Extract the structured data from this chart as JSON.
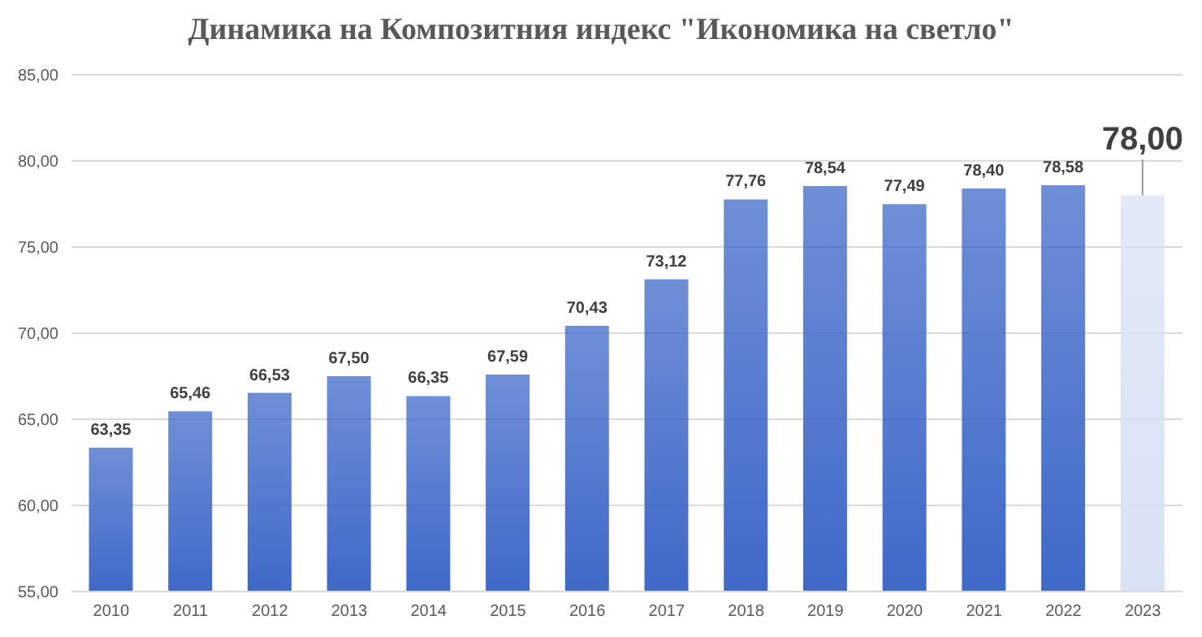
{
  "chart_data": {
    "type": "bar",
    "title": "Динамика на Композитния индекс \"Икономика на светло\"",
    "categories": [
      "2010",
      "2011",
      "2012",
      "2013",
      "2014",
      "2015",
      "2016",
      "2017",
      "2018",
      "2019",
      "2020",
      "2021",
      "2022",
      "2023"
    ],
    "values": [
      63.35,
      65.46,
      66.53,
      67.5,
      66.35,
      67.59,
      70.43,
      73.12,
      77.76,
      78.54,
      77.49,
      78.4,
      78.58,
      78
    ],
    "colors": [
      "#3f69c9",
      "#3f69c9",
      "#3f69c9",
      "#3f69c9",
      "#3f69c9",
      "#3f69c9",
      "#3f69c9",
      "#3f69c9",
      "#3f69c9",
      "#3f69c9",
      "#3f69c9",
      "#3f69c9",
      "#3f69c9",
      "#d9e1f4"
    ],
    "value_labels": [
      "63,35",
      "65,46",
      "66,53",
      "67,50",
      "66,35",
      "67,59",
      "70,43",
      "73,12",
      "77,76",
      "78,54",
      "77,49",
      "78,40",
      "78,58",
      "78,00"
    ],
    "ylim": [
      55,
      85
    ],
    "yticks": [
      {
        "value": 55,
        "label": "55,00"
      },
      {
        "value": 60,
        "label": "60,00"
      },
      {
        "value": 65,
        "label": "65,00"
      },
      {
        "value": 70,
        "label": "70,00"
      },
      {
        "value": 75,
        "label": "75,00"
      },
      {
        "value": 80,
        "label": "80,00"
      },
      {
        "value": 85,
        "label": "85,00"
      }
    ],
    "grid": "y"
  }
}
